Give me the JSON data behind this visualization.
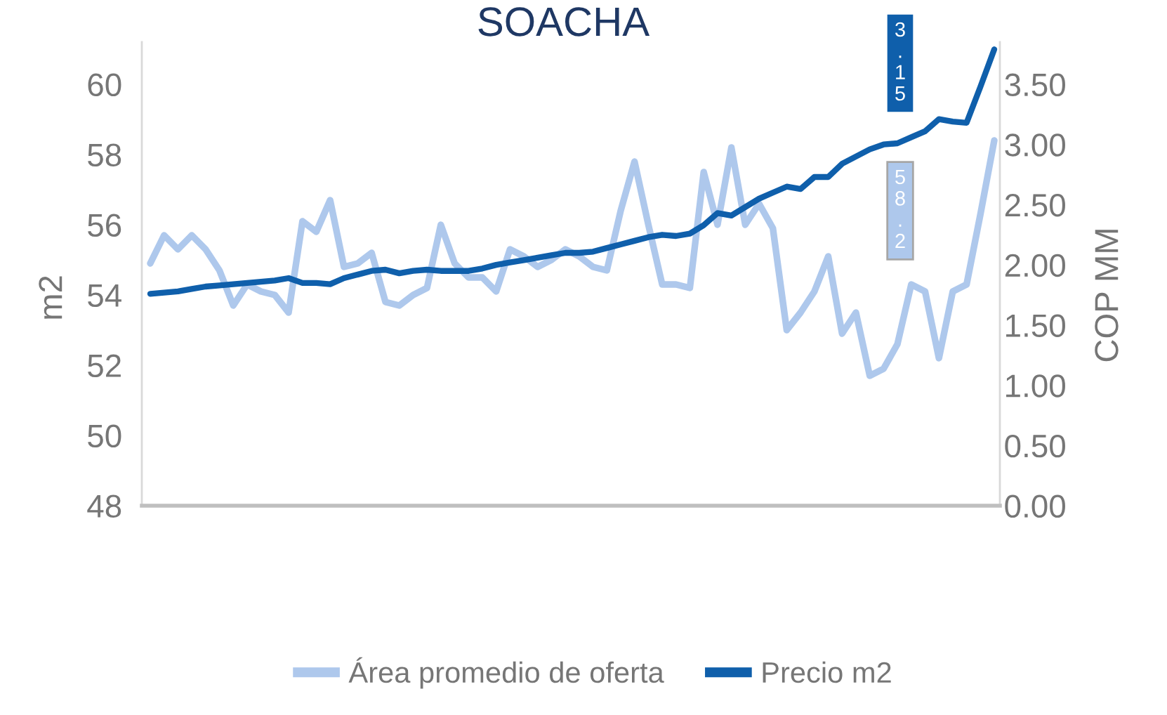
{
  "chart_data": {
    "type": "line",
    "title": "SOACHA",
    "ylabel": "m2",
    "y2label": "COP MM",
    "categories": [
      null,
      null,
      null,
      null,
      null,
      null,
      null,
      null,
      null,
      null,
      null,
      null,
      null,
      null,
      null,
      null,
      null,
      null,
      null,
      null,
      null,
      null,
      null,
      null,
      null,
      null,
      null,
      null,
      null,
      null,
      null,
      null,
      null,
      null,
      null,
      null,
      null,
      null,
      null,
      null,
      null,
      null,
      null,
      null,
      null,
      null,
      null,
      null,
      null,
      null,
      null,
      null,
      null,
      null,
      null,
      null,
      null,
      null,
      null,
      null,
      null,
      null
    ],
    "series": [
      {
        "name": "Área promedio de oferta",
        "color": "#aec8ec",
        "values": [
          54.9,
          55.7,
          55.3,
          55.7,
          55.3,
          54.7,
          53.7,
          54.3,
          54.1,
          54.0,
          53.5,
          56.1,
          55.8,
          56.7,
          54.8,
          54.9,
          55.2,
          53.8,
          53.7,
          54.0,
          54.2,
          56.0,
          54.9,
          54.5,
          54.5,
          54.1,
          55.3,
          55.1,
          54.8,
          55.0,
          55.3,
          55.1,
          54.8,
          54.7,
          56.4,
          57.8,
          56.0,
          54.3,
          54.3,
          54.2,
          57.5,
          56.0,
          58.2,
          56.0,
          56.6,
          55.9,
          53.0,
          53.5,
          54.1,
          55.1,
          52.9,
          53.5,
          51.7,
          51.9,
          52.6,
          54.3,
          54.1,
          52.2,
          54.1,
          54.3,
          56.3,
          58.4
        ]
      },
      {
        "name": "Precio m2",
        "color": "#0f5fab",
        "axis": "y2",
        "values": [
          1.76,
          1.77,
          1.78,
          1.8,
          1.82,
          1.83,
          1.84,
          1.85,
          1.86,
          1.87,
          1.89,
          1.85,
          1.85,
          1.84,
          1.89,
          1.92,
          1.95,
          1.96,
          1.93,
          1.95,
          1.96,
          1.95,
          1.95,
          1.95,
          1.97,
          2.0,
          2.02,
          2.04,
          2.06,
          2.08,
          2.1,
          2.1,
          2.11,
          2.14,
          2.17,
          2.2,
          2.23,
          2.25,
          2.24,
          2.26,
          2.33,
          2.43,
          2.41,
          2.48,
          2.55,
          2.6,
          2.65,
          2.63,
          2.73,
          2.73,
          2.84,
          2.9,
          2.96,
          3.0,
          3.01,
          3.06,
          3.11,
          3.21,
          3.19,
          3.18,
          3.48,
          3.79
        ]
      }
    ],
    "ylim": [
      48,
      61.2
    ],
    "yticks": [
      48,
      50,
      52,
      54,
      56,
      58,
      60
    ],
    "y2lim": [
      0,
      3.85
    ],
    "y2ticks": [
      {
        "value": 0,
        "label": "0.00"
      },
      {
        "value": 0.5,
        "label": "0.50"
      },
      {
        "value": 1,
        "label": "1.00"
      },
      {
        "value": 1.5,
        "label": "1.50"
      },
      {
        "value": 2,
        "label": "2.00"
      },
      {
        "value": 2.5,
        "label": "2.50"
      },
      {
        "value": 3,
        "label": "3.00"
      },
      {
        "value": 3.5,
        "label": "3.50"
      }
    ],
    "annotations": [
      "3.15",
      "58.2"
    ],
    "legend": "bottom",
    "grid": false
  }
}
